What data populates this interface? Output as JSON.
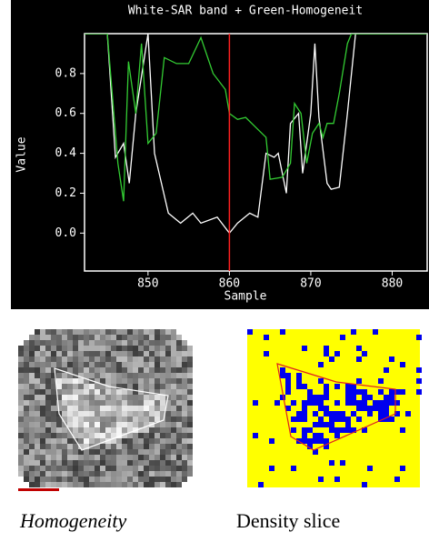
{
  "chart_data": {
    "type": "line",
    "title": "White-SAR band + Green-Homogeneit",
    "x_label": "Sample",
    "y_label": "Value",
    "xlim": [
      842.2,
      884.3
    ],
    "ylim": [
      -0.19,
      1.0
    ],
    "xticks": [
      850,
      860,
      870,
      880
    ],
    "yticks": [
      {
        "value": 0,
        "label": "0.0"
      },
      0.2,
      0.4,
      0.6,
      0.8
    ],
    "cursor_x": 860,
    "cursor_color": "#ff2020",
    "series": [
      {
        "color": "#ffffff",
        "x": [
          842.2,
          845,
          846,
          847,
          847.7,
          848.5,
          850,
          850.8,
          852.5,
          854,
          855.5,
          856.5,
          858.5,
          860,
          861,
          862.5,
          863.5,
          864.5,
          865.5,
          866,
          867,
          867.5,
          868.5,
          869,
          869.5,
          870,
          870.5,
          871,
          872,
          872.5,
          873.5,
          874.5,
          875.5,
          884.3
        ],
        "values": [
          1.0,
          1.0,
          0.38,
          0.45,
          0.25,
          0.6,
          1.0,
          0.4,
          0.1,
          0.05,
          0.1,
          0.05,
          0.08,
          0.0,
          0.05,
          0.1,
          0.08,
          0.4,
          0.38,
          0.4,
          0.2,
          0.55,
          0.6,
          0.3,
          0.45,
          0.6,
          0.95,
          0.58,
          0.25,
          0.22,
          0.23,
          0.6,
          1.0,
          1.0
        ]
      },
      {
        "color": "#33cc33",
        "x": [
          842.2,
          845,
          846.3,
          847,
          847.6,
          848.5,
          849.2,
          850,
          851,
          852,
          853.5,
          855,
          856.5,
          858,
          859.5,
          860,
          861,
          862,
          863.5,
          864.5,
          865,
          866.5,
          867.5,
          868,
          868.8,
          869.5,
          870.2,
          871,
          871.5,
          872,
          872.8,
          873.5,
          874.5,
          875,
          884.3
        ],
        "values": [
          1.0,
          1.0,
          0.35,
          0.16,
          0.86,
          0.6,
          0.95,
          0.45,
          0.5,
          0.88,
          0.85,
          0.85,
          0.98,
          0.8,
          0.72,
          0.6,
          0.57,
          0.58,
          0.52,
          0.48,
          0.27,
          0.28,
          0.35,
          0.65,
          0.6,
          0.35,
          0.5,
          0.55,
          0.48,
          0.55,
          0.55,
          0.7,
          0.95,
          1.0,
          1.0
        ]
      }
    ]
  },
  "images": [
    {
      "caption": "Homogeneity"
    },
    {
      "caption": "Density slice"
    }
  ]
}
